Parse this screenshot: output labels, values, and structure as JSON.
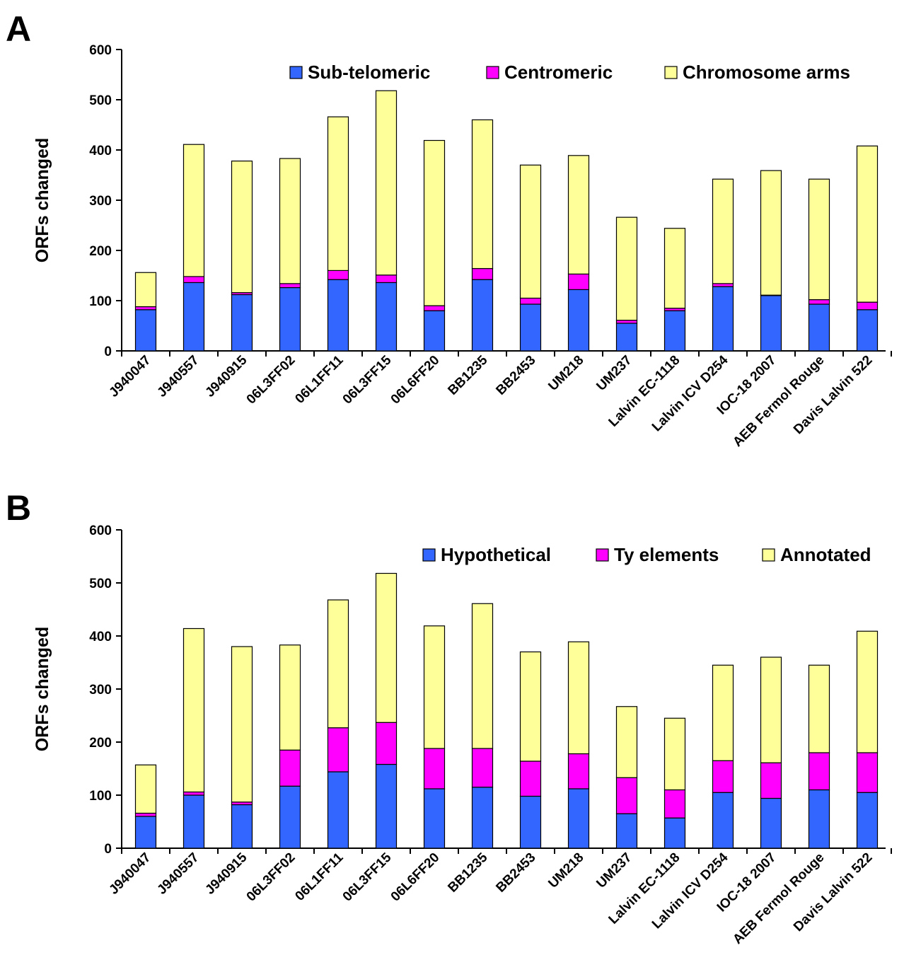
{
  "chart_data": [
    {
      "panel": "A",
      "type": "bar",
      "stacked": true,
      "ylabel": "ORFs changed",
      "xlabel": "",
      "ylim": [
        0,
        600
      ],
      "yticks": [
        0,
        100,
        200,
        300,
        400,
        500,
        600
      ],
      "grid": false,
      "legend_position": "top-right",
      "categories": [
        "J940047",
        "J940557",
        "J940915",
        "06L3FF02",
        "06L1FF11",
        "06L3FF15",
        "06L6FF20",
        "BB1235",
        "BB2453",
        "UM218",
        "UM237",
        "Lalvin EC-1118",
        "Lalvin ICV D254",
        "IOC-18 2007",
        "AEB Fermol Rouge",
        "Davis Lalvin 522"
      ],
      "series": [
        {
          "name": "Sub-telomeric",
          "color": "#3366ff",
          "values": [
            82,
            136,
            112,
            126,
            142,
            136,
            80,
            142,
            93,
            122,
            55,
            80,
            128,
            110,
            93,
            82
          ]
        },
        {
          "name": "Centromeric",
          "color": "#ff00ff",
          "values": [
            6,
            12,
            4,
            8,
            18,
            15,
            10,
            22,
            12,
            31,
            6,
            5,
            6,
            1,
            9,
            15
          ]
        },
        {
          "name": "Chromosome arms",
          "color": "#ffff99",
          "values": [
            68,
            263,
            262,
            249,
            306,
            367,
            329,
            296,
            265,
            236,
            205,
            159,
            208,
            248,
            240,
            311
          ]
        }
      ]
    },
    {
      "panel": "B",
      "type": "bar",
      "stacked": true,
      "ylabel": "ORFs changed",
      "xlabel": "",
      "ylim": [
        0,
        600
      ],
      "yticks": [
        0,
        100,
        200,
        300,
        400,
        500,
        600
      ],
      "grid": false,
      "legend_position": "top-right",
      "categories": [
        "J940047",
        "J940557",
        "J940915",
        "06L3FF02",
        "06L1FF11",
        "06L3FF15",
        "06L6FF20",
        "BB1235",
        "BB2453",
        "UM218",
        "UM237",
        "Lalvin EC-1118",
        "Lalvin ICV D254",
        "IOC-18 2007",
        "AEB Fermol Rouge",
        "Davis Lalvin 522"
      ],
      "series": [
        {
          "name": "Hypothetical",
          "color": "#3366ff",
          "values": [
            60,
            100,
            82,
            117,
            144,
            158,
            112,
            115,
            98,
            112,
            65,
            57,
            105,
            94,
            110,
            105
          ]
        },
        {
          "name": "Ty elements",
          "color": "#ff00ff",
          "values": [
            6,
            6,
            5,
            68,
            83,
            79,
            76,
            73,
            66,
            66,
            68,
            53,
            60,
            67,
            70,
            75
          ]
        },
        {
          "name": "Annotated",
          "color": "#ffff99",
          "values": [
            91,
            308,
            293,
            198,
            241,
            281,
            231,
            273,
            206,
            211,
            134,
            135,
            180,
            199,
            165,
            229
          ]
        }
      ]
    }
  ]
}
